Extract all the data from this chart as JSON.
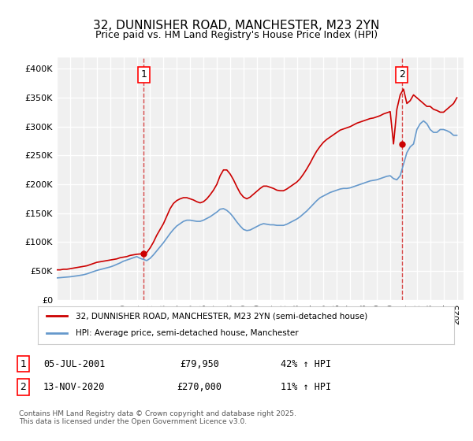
{
  "title": "32, DUNNISHER ROAD, MANCHESTER, M23 2YN",
  "subtitle": "Price paid vs. HM Land Registry's House Price Index (HPI)",
  "title_fontsize": 11,
  "subtitle_fontsize": 9,
  "background_color": "#ffffff",
  "plot_bg_color": "#f0f0f0",
  "grid_color": "#ffffff",
  "line1_color": "#cc0000",
  "line2_color": "#6699cc",
  "ylim": [
    0,
    420000
  ],
  "yticks": [
    0,
    50000,
    100000,
    150000,
    200000,
    250000,
    300000,
    350000,
    400000
  ],
  "ytick_labels": [
    "£0",
    "£50K",
    "£100K",
    "£150K",
    "£200K",
    "£250K",
    "£300K",
    "£350K",
    "£400K"
  ],
  "xlim_start": 1995.0,
  "xlim_end": 2025.5,
  "xticks": [
    1995,
    1996,
    1997,
    1998,
    1999,
    2000,
    2001,
    2002,
    2003,
    2004,
    2005,
    2006,
    2007,
    2008,
    2009,
    2010,
    2011,
    2012,
    2013,
    2014,
    2015,
    2016,
    2017,
    2018,
    2019,
    2020,
    2021,
    2022,
    2023,
    2024,
    2025
  ],
  "annotation1": {
    "x_year": 2001.52,
    "price": 79950,
    "label": "1",
    "date_str": "05-JUL-2001",
    "amount_str": "£79,950",
    "hpi_str": "42% ↑ HPI"
  },
  "annotation2": {
    "x_year": 2020.87,
    "price": 270000,
    "label": "2",
    "date_str": "13-NOV-2020",
    "amount_str": "£270,000",
    "hpi_str": "11% ↑ HPI"
  },
  "legend1_label": "32, DUNNISHER ROAD, MANCHESTER, M23 2YN (semi-detached house)",
  "legend2_label": "HPI: Average price, semi-detached house, Manchester",
  "footer_text": "Contains HM Land Registry data © Crown copyright and database right 2025.\nThis data is licensed under the Open Government Licence v3.0.",
  "hpi_line": {
    "x": [
      1995.0,
      1995.25,
      1995.5,
      1995.75,
      1996.0,
      1996.25,
      1996.5,
      1996.75,
      1997.0,
      1997.25,
      1997.5,
      1997.75,
      1998.0,
      1998.25,
      1998.5,
      1998.75,
      1999.0,
      1999.25,
      1999.5,
      1999.75,
      2000.0,
      2000.25,
      2000.5,
      2000.75,
      2001.0,
      2001.25,
      2001.5,
      2001.75,
      2002.0,
      2002.25,
      2002.5,
      2002.75,
      2003.0,
      2003.25,
      2003.5,
      2003.75,
      2004.0,
      2004.25,
      2004.5,
      2004.75,
      2005.0,
      2005.25,
      2005.5,
      2005.75,
      2006.0,
      2006.25,
      2006.5,
      2006.75,
      2007.0,
      2007.25,
      2007.5,
      2007.75,
      2008.0,
      2008.25,
      2008.5,
      2008.75,
      2009.0,
      2009.25,
      2009.5,
      2009.75,
      2010.0,
      2010.25,
      2010.5,
      2010.75,
      2011.0,
      2011.25,
      2011.5,
      2011.75,
      2012.0,
      2012.25,
      2012.5,
      2012.75,
      2013.0,
      2013.25,
      2013.5,
      2013.75,
      2014.0,
      2014.25,
      2014.5,
      2014.75,
      2015.0,
      2015.25,
      2015.5,
      2015.75,
      2016.0,
      2016.25,
      2016.5,
      2016.75,
      2017.0,
      2017.25,
      2017.5,
      2017.75,
      2018.0,
      2018.25,
      2018.5,
      2018.75,
      2019.0,
      2019.25,
      2019.5,
      2019.75,
      2020.0,
      2020.25,
      2020.5,
      2020.75,
      2021.0,
      2021.25,
      2021.5,
      2021.75,
      2022.0,
      2022.25,
      2022.5,
      2022.75,
      2023.0,
      2023.25,
      2023.5,
      2023.75,
      2024.0,
      2024.25,
      2024.5,
      2024.75,
      2025.0
    ],
    "y": [
      38000,
      38500,
      39000,
      39500,
      40000,
      40800,
      41600,
      42500,
      43500,
      45000,
      47000,
      49000,
      51000,
      52500,
      54000,
      55500,
      57000,
      59000,
      61500,
      64000,
      67000,
      69000,
      71000,
      73000,
      75000,
      72000,
      70000,
      68000,
      72000,
      78000,
      85000,
      92000,
      99000,
      107000,
      115000,
      122000,
      128000,
      132000,
      136000,
      138000,
      138000,
      137000,
      136000,
      136000,
      138000,
      141000,
      144000,
      148000,
      152000,
      157000,
      158000,
      155000,
      150000,
      143000,
      135000,
      128000,
      122000,
      120000,
      121000,
      124000,
      127000,
      130000,
      132000,
      131000,
      130000,
      130000,
      129000,
      129000,
      129000,
      131000,
      134000,
      137000,
      140000,
      144000,
      149000,
      154000,
      160000,
      166000,
      172000,
      177000,
      180000,
      183000,
      186000,
      188000,
      190000,
      192000,
      193000,
      193000,
      194000,
      196000,
      198000,
      200000,
      202000,
      204000,
      206000,
      207000,
      208000,
      210000,
      212000,
      214000,
      215000,
      210000,
      208000,
      215000,
      235000,
      255000,
      265000,
      270000,
      295000,
      305000,
      310000,
      305000,
      295000,
      290000,
      290000,
      295000,
      295000,
      293000,
      290000,
      285000,
      285000
    ]
  },
  "price_line": {
    "x": [
      1995.0,
      1995.25,
      1995.5,
      1995.75,
      1996.0,
      1996.25,
      1996.5,
      1996.75,
      1997.0,
      1997.25,
      1997.5,
      1997.75,
      1998.0,
      1998.25,
      1998.5,
      1998.75,
      1999.0,
      1999.25,
      1999.5,
      1999.75,
      2000.0,
      2000.25,
      2000.5,
      2000.75,
      2001.0,
      2001.25,
      2001.5,
      2001.75,
      2002.0,
      2002.25,
      2002.5,
      2002.75,
      2003.0,
      2003.25,
      2003.5,
      2003.75,
      2004.0,
      2004.25,
      2004.5,
      2004.75,
      2005.0,
      2005.25,
      2005.5,
      2005.75,
      2006.0,
      2006.25,
      2006.5,
      2006.75,
      2007.0,
      2007.25,
      2007.5,
      2007.75,
      2008.0,
      2008.25,
      2008.5,
      2008.75,
      2009.0,
      2009.25,
      2009.5,
      2009.75,
      2010.0,
      2010.25,
      2010.5,
      2010.75,
      2011.0,
      2011.25,
      2011.5,
      2011.75,
      2012.0,
      2012.25,
      2012.5,
      2012.75,
      2013.0,
      2013.25,
      2013.5,
      2013.75,
      2014.0,
      2014.25,
      2014.5,
      2014.75,
      2015.0,
      2015.25,
      2015.5,
      2015.75,
      2016.0,
      2016.25,
      2016.5,
      2016.75,
      2017.0,
      2017.25,
      2017.5,
      2017.75,
      2018.0,
      2018.25,
      2018.5,
      2018.75,
      2019.0,
      2019.25,
      2019.5,
      2019.75,
      2020.0,
      2020.25,
      2020.5,
      2020.75,
      2021.0,
      2021.25,
      2021.5,
      2021.75,
      2022.0,
      2022.25,
      2022.5,
      2022.75,
      2023.0,
      2023.25,
      2023.5,
      2023.75,
      2024.0,
      2024.25,
      2024.5,
      2024.75,
      2025.0
    ],
    "y": [
      52000,
      52000,
      53000,
      53000,
      54000,
      55000,
      56000,
      57000,
      58000,
      59000,
      61000,
      63000,
      65000,
      66000,
      67000,
      68000,
      69000,
      70000,
      71000,
      73000,
      74000,
      75000,
      77000,
      78000,
      79000,
      79500,
      79950,
      82000,
      90000,
      100000,
      112000,
      122000,
      132000,
      145000,
      158000,
      167000,
      172000,
      175000,
      177000,
      177000,
      175000,
      173000,
      170000,
      168000,
      170000,
      175000,
      182000,
      190000,
      200000,
      215000,
      225000,
      225000,
      218000,
      208000,
      196000,
      185000,
      178000,
      175000,
      178000,
      183000,
      188000,
      193000,
      197000,
      197000,
      195000,
      193000,
      190000,
      189000,
      189000,
      192000,
      196000,
      200000,
      204000,
      210000,
      218000,
      227000,
      237000,
      248000,
      258000,
      266000,
      273000,
      278000,
      282000,
      286000,
      290000,
      294000,
      296000,
      298000,
      300000,
      303000,
      306000,
      308000,
      310000,
      312000,
      314000,
      315000,
      317000,
      319000,
      322000,
      324000,
      326000,
      270000,
      330000,
      355000,
      365000,
      340000,
      345000,
      355000,
      350000,
      345000,
      340000,
      335000,
      335000,
      330000,
      328000,
      325000,
      325000,
      330000,
      335000,
      340000,
      350000
    ]
  }
}
